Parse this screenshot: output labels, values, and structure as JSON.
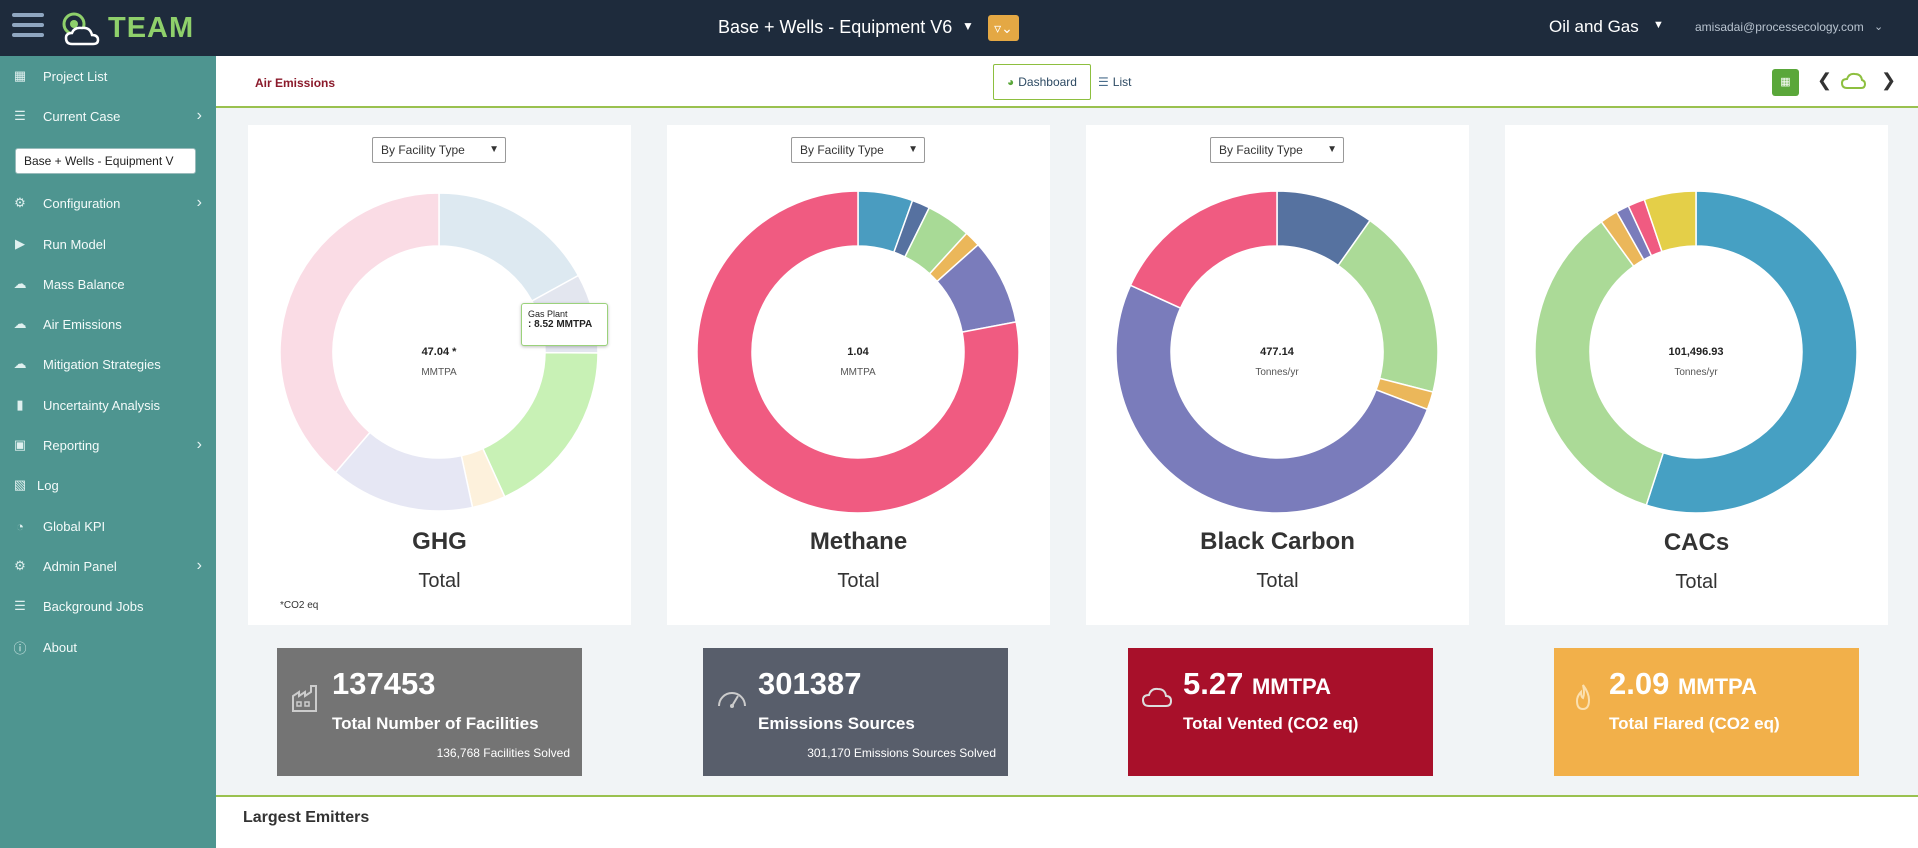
{
  "app": {
    "logo_text": "TEAM"
  },
  "header": {
    "case_title": "Base + Wells - Equipment V6",
    "industry": "Oil and Gas",
    "user_email": "amisadai@processecology.com"
  },
  "sidebar": {
    "items": [
      {
        "label": "Project List",
        "icon": "grid-icon"
      },
      {
        "label": "Current Case",
        "icon": "list-icon",
        "chevron": true
      },
      {
        "label": "Configuration",
        "icon": "gears-icon",
        "chevron": true
      },
      {
        "label": "Run Model",
        "icon": "play-icon"
      },
      {
        "label": "Mass Balance",
        "icon": "cloud-icon"
      },
      {
        "label": "Air Emissions",
        "icon": "cloud-icon"
      },
      {
        "label": "Mitigation Strategies",
        "icon": "cloud-icon"
      },
      {
        "label": "Uncertainty Analysis",
        "icon": "chart-icon"
      },
      {
        "label": "Reporting",
        "icon": "report-icon",
        "chevron": true
      },
      {
        "label": "Log",
        "icon": "file-icon"
      },
      {
        "label": "Global KPI",
        "icon": "gauge-icon"
      },
      {
        "label": "Admin Panel",
        "icon": "gear-icon",
        "chevron": true
      },
      {
        "label": "Background Jobs",
        "icon": "tasks-icon"
      },
      {
        "label": "About",
        "icon": "info-icon"
      }
    ],
    "case_select": "Base + Wells - Equipment V"
  },
  "subheader": {
    "title": "Air Emissions",
    "tab_dashboard": "Dashboard",
    "tab_list": "List"
  },
  "cards": [
    {
      "dropdown": "By Facility Type",
      "center_value": "47.04 *",
      "center_unit": "MMTPA",
      "title": "GHG",
      "subtitle": "Total",
      "note": "*CO2 eq",
      "tooltip": {
        "label": "Gas Plant",
        "value": ": 8.52 MMTPA"
      }
    },
    {
      "dropdown": "By Facility Type",
      "center_value": "1.04",
      "center_unit": "MMTPA",
      "title": "Methane",
      "subtitle": "Total"
    },
    {
      "dropdown": "By Facility Type",
      "center_value": "477.14",
      "center_unit": "Tonnes/yr",
      "title": "Black Carbon",
      "subtitle": "Total"
    },
    {
      "center_value": "101,496.93",
      "center_unit": "Tonnes/yr",
      "title": "CACs",
      "subtitle": "Total"
    }
  ],
  "chart_data": [
    {
      "type": "pie",
      "title": "GHG",
      "slices": [
        {
          "value": 8.0,
          "color": "#dde9f1"
        },
        {
          "value": 3.8,
          "color": "#e3e6ef"
        },
        {
          "value": 8.52,
          "color": "#c8f1b5"
        },
        {
          "value": 1.6,
          "color": "#fdf1dc"
        },
        {
          "value": 6.9,
          "color": "#e6e7f4"
        },
        {
          "value": 18.2,
          "color": "#fadce5"
        }
      ]
    },
    {
      "type": "pie",
      "title": "Methane",
      "slices": [
        {
          "value": 5.5,
          "color": "#4a9cc0"
        },
        {
          "value": 1.8,
          "color": "#5671a0"
        },
        {
          "value": 4.5,
          "color": "#a8da96"
        },
        {
          "value": 1.6,
          "color": "#ebb75a"
        },
        {
          "value": 8.6,
          "color": "#7a7cbb"
        },
        {
          "value": 78.0,
          "color": "#f05b81"
        }
      ]
    },
    {
      "type": "pie",
      "title": "Black Carbon",
      "slices": [
        {
          "value": 9.8,
          "color": "#5672a0"
        },
        {
          "value": 19.2,
          "color": "#abda97"
        },
        {
          "value": 1.8,
          "color": "#ebb75a"
        },
        {
          "value": 51.0,
          "color": "#7a7cbb"
        },
        {
          "value": 18.2,
          "color": "#f05b81"
        }
      ]
    },
    {
      "type": "pie",
      "title": "CACs",
      "slices": [
        {
          "value": 55.0,
          "color": "#46a0c3"
        },
        {
          "value": 35.0,
          "color": "#abda97"
        },
        {
          "value": 1.8,
          "color": "#ebb75a"
        },
        {
          "value": 1.3,
          "color": "#7a7cbb"
        },
        {
          "value": 1.7,
          "color": "#f05b81"
        },
        {
          "value": 5.2,
          "color": "#e4cf48"
        }
      ]
    }
  ],
  "tiles": [
    {
      "value": "137453",
      "unit": "",
      "label": "Total Number of Facilities",
      "footer": "136,768 Facilities Solved",
      "color": "#747474",
      "icon": "factory-icon"
    },
    {
      "value": "301387",
      "unit": "",
      "label": "Emissions Sources",
      "footer": "301,170 Emissions Sources Solved",
      "color": "#585e6b",
      "icon": "gauge-icon"
    },
    {
      "value": "5.27",
      "unit": "MMTPA",
      "label": "Total Vented (CO2 eq)",
      "footer": "",
      "color": "#a8102a",
      "icon": "cloud-icon"
    },
    {
      "value": "2.09",
      "unit": "MMTPA",
      "label": "Total Flared (CO2 eq)",
      "footer": "",
      "color": "#f2b04a",
      "icon": "flame-icon"
    }
  ],
  "bottom": {
    "title": "Largest Emitters"
  }
}
